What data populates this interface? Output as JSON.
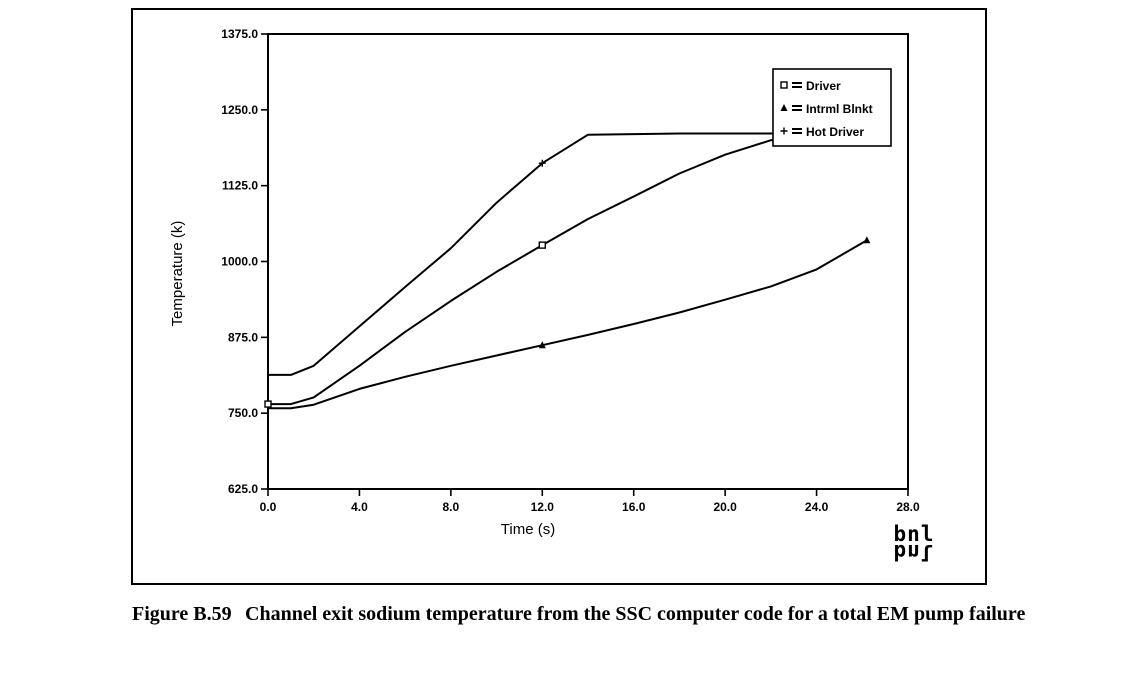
{
  "figure": {
    "label": "Figure B.59",
    "caption": "Channel exit sodium temperature from the SSC computer code for a total EM pump failure",
    "logo": [
      "bnl",
      "bnl"
    ]
  },
  "chart_data": {
    "type": "line",
    "title": "",
    "xlabel": "Time (s)",
    "ylabel": "Temperature (k)",
    "xlim": [
      0.0,
      28.0
    ],
    "ylim": [
      625.0,
      1375.0
    ],
    "x_ticks": [
      "0.0",
      "4.0",
      "8.0",
      "12.0",
      "16.0",
      "20.0",
      "24.0",
      "28.0"
    ],
    "y_ticks": [
      "625.0",
      "750.0",
      "875.0",
      "1000.0",
      "1125.0",
      "1250.0",
      "1375.0"
    ],
    "x_tick_values": [
      0,
      4,
      8,
      12,
      16,
      20,
      24,
      28
    ],
    "y_tick_values": [
      625,
      750,
      875,
      1000,
      1125,
      1250,
      1375
    ],
    "grid": false,
    "legend_position": "top-right",
    "series": [
      {
        "name": "Driver",
        "marker": "square",
        "x": [
          0.0,
          1.0,
          2.0,
          4.0,
          6.0,
          8.0,
          10.0,
          12.0,
          14.0,
          16.2,
          18.0,
          20.0,
          22.0,
          24.0,
          26.2
        ],
        "y": [
          765,
          765,
          776,
          828,
          884,
          935,
          983,
          1027,
          1070,
          1111,
          1145,
          1176,
          1200,
          1211,
          1211
        ],
        "markers_at": [
          0.0,
          12.0
        ]
      },
      {
        "name": "Intrml Blnkt",
        "marker": "triangle",
        "x": [
          0.0,
          1.0,
          2.0,
          4.0,
          6.0,
          8.0,
          10.0,
          12.0,
          14.0,
          16.0,
          18.0,
          20.0,
          22.0,
          24.0,
          26.2
        ],
        "y": [
          758,
          758,
          764,
          790,
          810,
          828,
          845,
          862,
          879,
          897,
          916,
          937,
          959,
          987,
          1035
        ],
        "markers_at": [
          12.0,
          26.2
        ]
      },
      {
        "name": "Hot Driver",
        "marker": "plus",
        "x": [
          0.0,
          1.0,
          2.0,
          4.0,
          6.0,
          8.0,
          10.0,
          12.0,
          14.0,
          16.0,
          18.0,
          20.0,
          22.0,
          24.0,
          26.2
        ],
        "y": [
          813,
          813,
          828,
          893,
          958,
          1022,
          1097,
          1162,
          1209,
          1210,
          1211,
          1211,
          1211,
          1211,
          1211
        ],
        "markers_at": [
          12.0
        ]
      }
    ]
  }
}
